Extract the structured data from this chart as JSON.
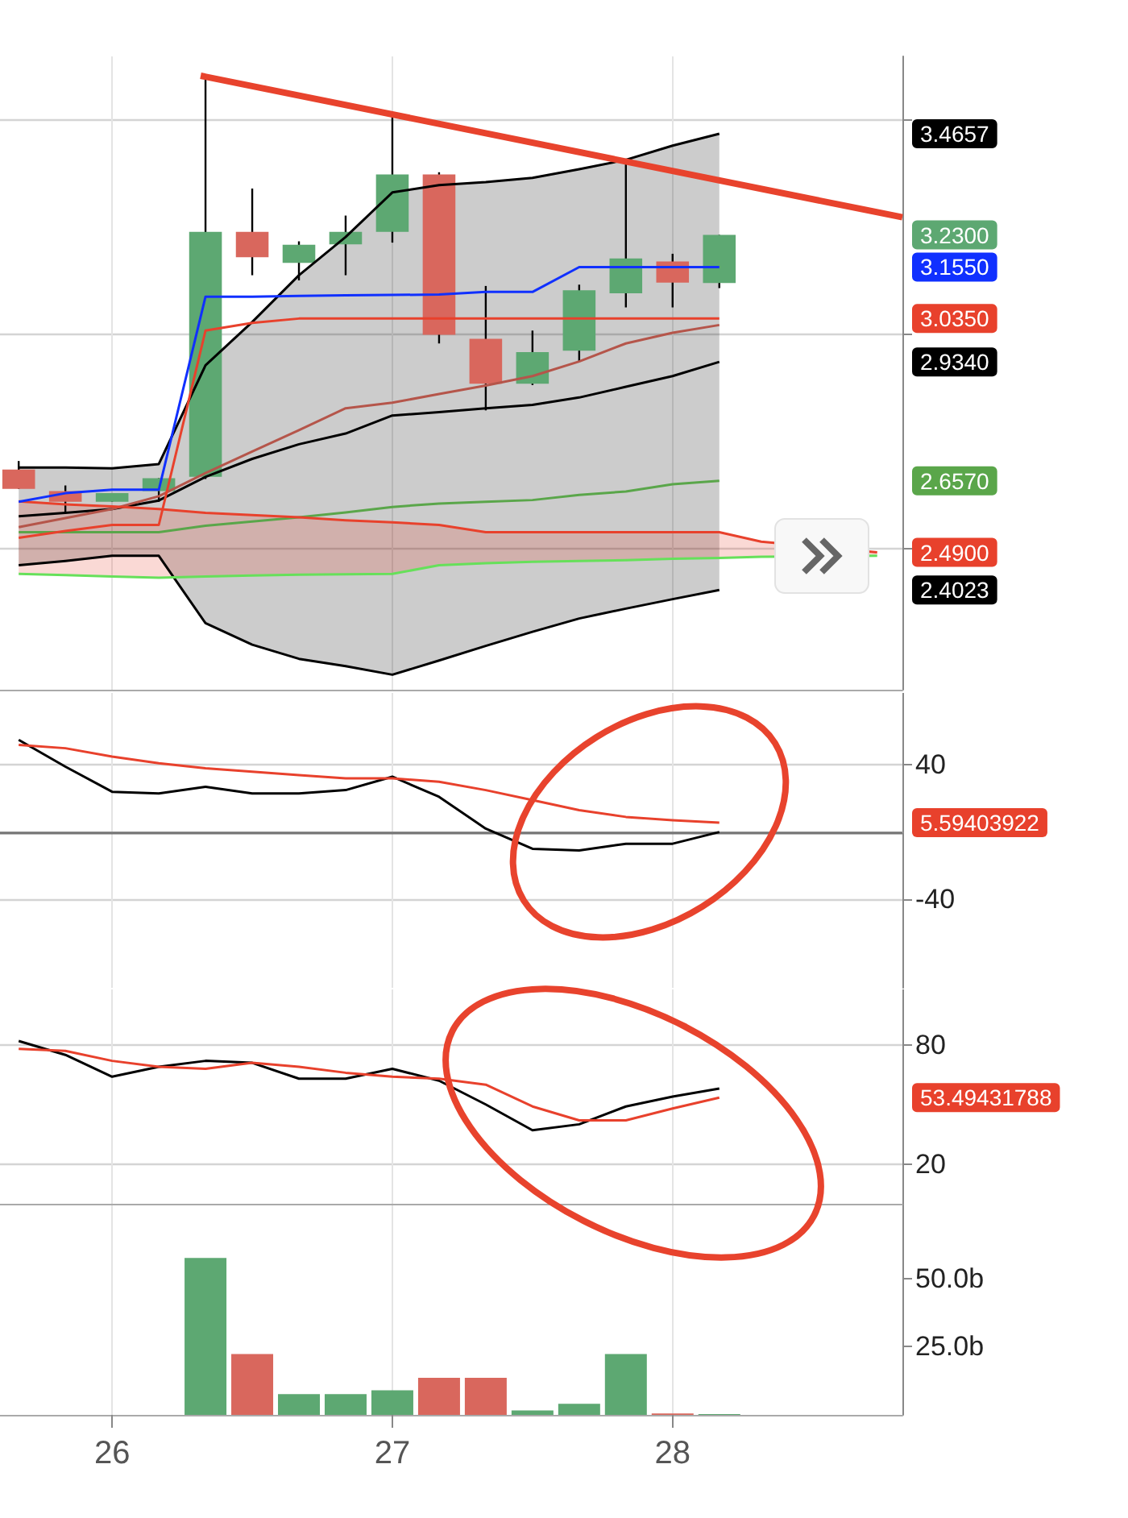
{
  "chart_data": [
    {
      "type": "candlestick",
      "x": [
        25.6667,
        25.8333,
        26,
        26.1667,
        26.3333,
        26.5,
        26.6667,
        26.8333,
        27,
        27.1667,
        27.3333,
        27.5,
        27.6667,
        27.8333,
        28,
        28.1667
      ],
      "ohlc": [
        [
          2.683,
          2.703,
          2.638,
          2.638
        ],
        [
          2.633,
          2.646,
          2.582,
          2.608
        ],
        [
          2.608,
          2.628,
          2.608,
          2.628
        ],
        [
          2.633,
          2.663,
          2.608,
          2.663
        ],
        [
          2.666,
          3.601,
          2.661,
          3.237
        ],
        [
          3.237,
          3.338,
          3.136,
          3.178
        ],
        [
          3.165,
          3.215,
          3.124,
          3.207
        ],
        [
          3.208,
          3.275,
          3.136,
          3.237
        ],
        [
          3.237,
          3.505,
          3.212,
          3.371
        ],
        [
          3.371,
          3.376,
          2.977,
          2.997
        ],
        [
          2.988,
          3.111,
          2.821,
          2.883
        ],
        [
          2.883,
          3.007,
          2.88,
          2.957
        ],
        [
          2.96,
          3.114,
          2.935,
          3.101
        ],
        [
          3.094,
          3.4,
          3.061,
          3.175
        ],
        [
          3.168,
          3.186,
          3.061,
          3.119
        ],
        [
          3.118,
          3.23,
          3.106,
          3.23
        ]
      ],
      "colors": [
        "#d9675d",
        "#d9675d",
        "#5da872",
        "#5da872",
        "#5da872",
        "#d9675d",
        "#5da872",
        "#5da872",
        "#5da872",
        "#d9675d",
        "#d9675d",
        "#5da872",
        "#5da872",
        "#5da872",
        "#d9675d",
        "#5da872"
      ],
      "series": [
        {
          "type": "line",
          "color": "#000000",
          "values": [
            2.688,
            2.688,
            2.686,
            2.696,
            2.926,
            3.027,
            3.136,
            3.225,
            3.329,
            3.346,
            3.353,
            3.363,
            3.383,
            3.405,
            3.438,
            3.4657
          ],
          "lower": [
            2.46,
            2.47,
            2.482,
            2.482,
            2.325,
            2.275,
            2.242,
            2.225,
            2.205,
            2.238,
            2.272,
            2.305,
            2.336,
            2.359,
            2.381,
            2.4023
          ],
          "upper": [
            2.688,
            2.688,
            2.686,
            2.696,
            2.926,
            3.027,
            3.136,
            3.225,
            3.329,
            3.346,
            3.353,
            3.363,
            3.383,
            3.405,
            3.438,
            3.4657
          ]
        },
        {
          "type": "line",
          "color": "#000000",
          "values": [
            2.46,
            2.47,
            2.482,
            2.482,
            2.325,
            2.275,
            2.242,
            2.225,
            2.205,
            2.238,
            2.272,
            2.305,
            2.336,
            2.359,
            2.381,
            2.4023
          ]
        },
        {
          "type": "line",
          "color": "#000000",
          "values": [
            2.574,
            2.582,
            2.591,
            2.611,
            2.666,
            2.708,
            2.742,
            2.767,
            2.809,
            2.817,
            2.826,
            2.834,
            2.851,
            2.876,
            2.901,
            2.934
          ]
        },
        {
          "type": "line",
          "color": "#b5554a",
          "values": [
            2.549,
            2.57,
            2.591,
            2.621,
            2.675,
            2.725,
            2.775,
            2.826,
            2.839,
            2.859,
            2.879,
            2.901,
            2.935,
            2.977,
            3.002,
            3.02
          ]
        },
        {
          "type": "line",
          "color": "#5aa64a",
          "values": [
            2.537,
            2.537,
            2.537,
            2.537,
            2.552,
            2.562,
            2.572,
            2.583,
            2.596,
            2.604,
            2.608,
            2.612,
            2.624,
            2.632,
            2.649,
            2.657
          ]
        },
        {
          "type": "line",
          "color": "#e8412c",
          "x": [
            25.6667,
            25.8333,
            26,
            26.1667,
            26.3333,
            26.5,
            26.6667,
            26.8333,
            27,
            27.1667,
            27.3333,
            27.5,
            27.6667,
            27.8333,
            28,
            28.1667,
            28.316,
            28.73
          ],
          "values": [
            2.609,
            2.602,
            2.597,
            2.591,
            2.582,
            2.577,
            2.572,
            2.565,
            2.56,
            2.554,
            2.537,
            2.537,
            2.537,
            2.537,
            2.537,
            2.537,
            2.515,
            2.49
          ],
          "lower": [
            2.44,
            2.437,
            2.434,
            2.431,
            2.434,
            2.436,
            2.438,
            2.439,
            2.44,
            2.46,
            2.465,
            2.468,
            2.47,
            2.472,
            2.475,
            2.477,
            2.48,
            2.482
          ],
          "upper": [
            2.609,
            2.602,
            2.597,
            2.591,
            2.582,
            2.577,
            2.572,
            2.565,
            2.56,
            2.554,
            2.537,
            2.537,
            2.537,
            2.537,
            2.537,
            2.537,
            2.515,
            2.49
          ]
        },
        {
          "type": "line",
          "color": "#66e05a",
          "x": [
            25.6667,
            25.8333,
            26,
            26.1667,
            26.3333,
            26.5,
            26.6667,
            26.8333,
            27,
            27.1667,
            27.3333,
            27.5,
            27.6667,
            27.8333,
            28,
            28.1667,
            28.316,
            28.73
          ],
          "values": [
            2.44,
            2.437,
            2.434,
            2.431,
            2.434,
            2.436,
            2.438,
            2.439,
            2.44,
            2.46,
            2.465,
            2.468,
            2.47,
            2.472,
            2.475,
            2.477,
            2.48,
            2.482
          ]
        },
        {
          "type": "line",
          "color": "#1030ff",
          "values": [
            2.608,
            2.628,
            2.636,
            2.636,
            3.086,
            3.086,
            3.088,
            3.089,
            3.09,
            3.091,
            3.097,
            3.097,
            3.155,
            3.155,
            3.155,
            3.155
          ]
        },
        {
          "type": "line",
          "color": "#e8412c",
          "values": [
            2.524,
            2.54,
            2.554,
            2.554,
            3.007,
            3.025,
            3.035,
            3.035,
            3.035,
            3.035,
            3.035,
            3.035,
            3.035,
            3.035,
            3.035,
            3.035
          ]
        },
        {
          "type": "line",
          "color": "#e8432d",
          "x": [
            26.316,
            28.82
          ],
          "values": [
            3.601,
            3.271
          ]
        }
      ],
      "xlim": [
        25.6,
        28.82
      ],
      "xticks": [
        26,
        27,
        28
      ],
      "ylim": [
        2.17,
        3.646
      ],
      "yticks": [
        {
          "value": 3.5,
          "label": null
        },
        {
          "value": 3.0,
          "label": null
        },
        {
          "value": 2.5,
          "label": null
        },
        {
          "value": 3.4657,
          "label": "3.4657"
        },
        {
          "value": 3.23,
          "label": "3.2300"
        },
        {
          "value": 3.155,
          "label": "3.1550"
        },
        {
          "value": 3.035,
          "label": "3.0350"
        },
        {
          "value": 2.934,
          "label": "2.9340"
        },
        {
          "value": 2.657,
          "label": "2.6570"
        },
        {
          "value": 2.49,
          "label": "2.4900"
        },
        {
          "value": 2.4023,
          "label": "2.4023"
        }
      ],
      "grid": true,
      "marker": "none",
      "tick_labels": "y"
    },
    {
      "type": "line",
      "x": [
        25.6667,
        25.8333,
        26,
        26.1667,
        26.3333,
        26.5,
        26.6667,
        26.8333,
        27,
        27.1667,
        27.3333,
        27.5,
        27.6667,
        27.8333,
        28,
        28.1667
      ],
      "series": [
        {
          "color": "#000000",
          "values": [
            55,
            39,
            24,
            23,
            27,
            23,
            23,
            25,
            33,
            21,
            2,
            -10,
            -11,
            -7,
            -7,
            0
          ]
        },
        {
          "color": "#e8412c",
          "values": [
            52,
            50,
            45,
            41,
            38,
            36,
            34,
            32,
            32,
            30,
            25,
            19,
            13,
            9,
            7,
            5.59403922
          ]
        }
      ],
      "xlim": [
        25.6,
        28.82
      ],
      "xticks": [
        26,
        27,
        28
      ],
      "ylim": [
        -93,
        83
      ],
      "yticks": [
        40,
        -40,
        {
          "value": 5.59403922,
          "label": "5.59403922"
        }
      ],
      "ref_lines": [
        {
          "axis": "y",
          "value": 0,
          "color": "#777777"
        }
      ],
      "grid": true,
      "marker": "none",
      "tick_labels": "y"
    },
    {
      "type": "line",
      "x": [
        25.6667,
        25.8333,
        26,
        26.1667,
        26.3333,
        26.5,
        26.6667,
        26.8333,
        27,
        27.1667,
        27.3333,
        27.5,
        27.6667,
        27.8333,
        28,
        28.1667
      ],
      "series": [
        {
          "color": "#000000",
          "values": [
            82,
            75,
            64,
            69,
            72,
            71,
            63,
            63,
            68,
            62,
            50,
            37,
            40,
            49,
            54,
            58
          ]
        },
        {
          "color": "#e8412c",
          "values": [
            78,
            77,
            72,
            69,
            68,
            71,
            69,
            66,
            64,
            63,
            60,
            49,
            42,
            42,
            48,
            53.49431788
          ]
        }
      ],
      "xlim": [
        25.6,
        28.82
      ],
      "xticks": [
        26,
        27,
        28
      ],
      "ylim": [
        -9,
        108
      ],
      "yticks": [
        80,
        20,
        {
          "value": 53.49431788,
          "label": "53.49431788"
        }
      ],
      "grid": true,
      "marker": "none",
      "tick_labels": "y"
    },
    {
      "type": "bar",
      "x": [
        26.3333,
        26.5,
        26.6667,
        26.8333,
        27,
        27.1667,
        27.3333,
        27.5,
        27.6667,
        27.8333,
        28,
        28.1667
      ],
      "values": [
        57.6,
        22.3,
        7.6,
        7.6,
        9.0,
        13.6,
        13.6,
        1.6,
        4.1,
        22.3,
        0.5,
        0.3
      ],
      "colors": [
        "#5da872",
        "#d9675d",
        "#5da872",
        "#5da872",
        "#5da872",
        "#d9675d",
        "#d9675d",
        "#5da872",
        "#5da872",
        "#5da872",
        "#d9675d",
        "#5da872"
      ],
      "xlim": [
        25.6,
        28.82
      ],
      "xticks": [
        26,
        27,
        28
      ],
      "ylim": [
        0,
        71
      ],
      "yticks": [
        {
          "value": 50,
          "label": "50.0b"
        },
        {
          "value": 25,
          "label": "25.0b"
        }
      ],
      "grid": "x"
    }
  ]
}
